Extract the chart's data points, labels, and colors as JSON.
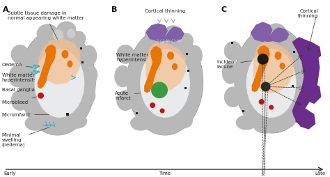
{
  "bg_color": "#ffffff",
  "gray_brain": "#b8b8b8",
  "gray_brain_dark": "#999999",
  "inner_white": "#d8d8d8",
  "inner_white2": "#e8eaec",
  "orange_lesion": "#e8750a",
  "peach_glow": "#f5c090",
  "purple_cortex": "#8060a8",
  "dark_purple": "#6b2d8b",
  "teal_color": "#3ab0c0",
  "green_infarct": "#3a9a40",
  "red_micro": "#cc1010",
  "black_lacune": "#1a1a1a",
  "ann_color": "#222222",
  "line_color": "#333333",
  "annotation_fontsize": 5.0,
  "panel_label_fontsize": 8,
  "timeline_label_left": "Early",
  "timeline_label_right": "Late",
  "timeline_label_center": "Time",
  "panel_labels": [
    "A",
    "B",
    "C"
  ]
}
